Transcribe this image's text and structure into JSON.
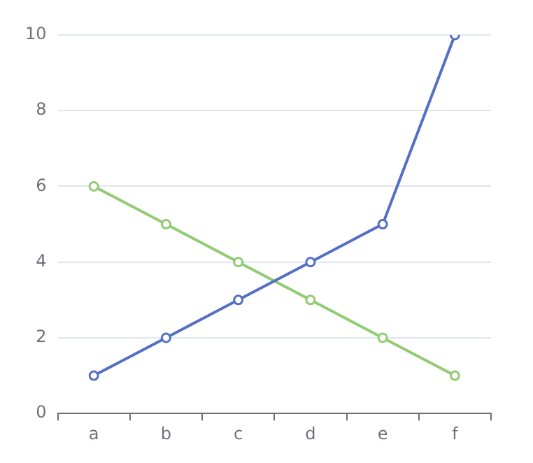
{
  "chart_data": {
    "type": "line",
    "categories": [
      "a",
      "b",
      "c",
      "d",
      "e",
      "f"
    ],
    "series": [
      {
        "color": "#5470c6",
        "values": [
          1,
          2,
          3,
          4,
          5,
          10
        ]
      },
      {
        "color": "#91cc75",
        "values": [
          6,
          5,
          4,
          3,
          2,
          1
        ]
      }
    ],
    "ylim": [
      0,
      10
    ],
    "yticks": [
      0,
      2,
      4,
      6,
      8,
      10
    ],
    "grid": "y",
    "marker": "circle",
    "line_style": "solid"
  }
}
